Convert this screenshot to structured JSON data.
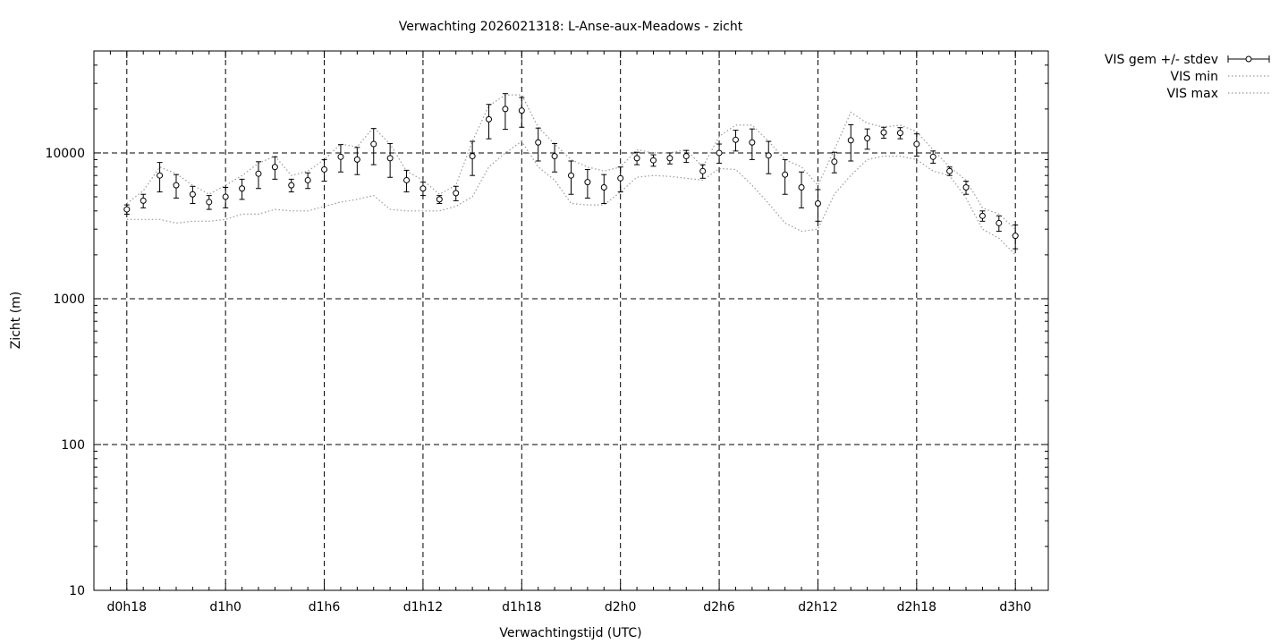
{
  "chart_data": {
    "type": "line",
    "title": "Verwachting 2026021318: L-Anse-aux-Meadows - zicht",
    "xlabel": "Verwachtingstijd (UTC)",
    "ylabel": "Zicht (m)",
    "yscale": "log",
    "ylim": [
      10,
      50000
    ],
    "xlim": [
      -2,
      56
    ],
    "x_unit": "hours since d0h18",
    "grid": true,
    "legend_position": "outside-top-right",
    "xticks": [
      {
        "x": 0,
        "label": "d0h18"
      },
      {
        "x": 6,
        "label": "d1h0"
      },
      {
        "x": 12,
        "label": "d1h6"
      },
      {
        "x": 18,
        "label": "d1h12"
      },
      {
        "x": 24,
        "label": "d1h18"
      },
      {
        "x": 30,
        "label": "d2h0"
      },
      {
        "x": 36,
        "label": "d2h6"
      },
      {
        "x": 42,
        "label": "d2h12"
      },
      {
        "x": 48,
        "label": "d2h18"
      },
      {
        "x": 54,
        "label": "d3h0"
      }
    ],
    "yticks": [
      {
        "y": 10,
        "label": "10"
      },
      {
        "y": 100,
        "label": "100"
      },
      {
        "y": 1000,
        "label": "1000"
      },
      {
        "y": 10000,
        "label": "10000"
      }
    ],
    "x": [
      0,
      1,
      2,
      3,
      4,
      5,
      6,
      7,
      8,
      9,
      10,
      11,
      12,
      13,
      14,
      15,
      16,
      17,
      18,
      19,
      20,
      21,
      22,
      23,
      24,
      25,
      26,
      27,
      28,
      29,
      30,
      31,
      32,
      33,
      34,
      35,
      36,
      37,
      38,
      39,
      40,
      41,
      42,
      43,
      44,
      45,
      46,
      47,
      48,
      49,
      50,
      51,
      52,
      53,
      54
    ],
    "series": [
      {
        "name": "VIS gem +/- stdev",
        "style": "points-errorbars",
        "mean": [
          4100,
          4700,
          7000,
          6000,
          5200,
          4600,
          5000,
          5700,
          7200,
          8000,
          6000,
          6500,
          7700,
          9400,
          9000,
          11500,
          9200,
          6500,
          5700,
          4800,
          5300,
          9500,
          17000,
          20000,
          19500,
          11800,
          9500,
          7000,
          6300,
          5800,
          6700,
          9200,
          8900,
          9200,
          9500,
          7500,
          10000,
          12300,
          11800,
          9600,
          7100,
          5800,
          4500,
          8700,
          12200,
          12600,
          13800,
          13700,
          11500,
          9400,
          7500,
          5800,
          3700,
          3300,
          2700
        ],
        "stdev": [
          300,
          500,
          1600,
          1100,
          700,
          500,
          800,
          900,
          1500,
          1400,
          600,
          800,
          1300,
          2000,
          1900,
          3200,
          2400,
          1100,
          600,
          300,
          600,
          2500,
          4500,
          5500,
          4500,
          3000,
          2100,
          1800,
          1400,
          1300,
          1300,
          900,
          800,
          800,
          900,
          800,
          1500,
          2000,
          2800,
          2400,
          1900,
          1600,
          1100,
          1400,
          3400,
          2000,
          1200,
          1200,
          2000,
          900,
          500,
          600,
          300,
          400,
          500
        ]
      },
      {
        "name": "VIS min",
        "style": "dotted",
        "values": [
          3500,
          3500,
          3500,
          3300,
          3400,
          3400,
          3500,
          3800,
          3800,
          4100,
          4000,
          4000,
          4300,
          4600,
          4800,
          5100,
          4100,
          4000,
          4000,
          4000,
          4300,
          5000,
          8000,
          10000,
          12000,
          8000,
          6500,
          4500,
          4400,
          4400,
          5400,
          6800,
          7000,
          6900,
          6700,
          6500,
          7800,
          7700,
          6000,
          4500,
          3300,
          2900,
          3000,
          5200,
          7000,
          9000,
          9500,
          9500,
          9000,
          7500,
          7000,
          4900,
          3000,
          2600,
          2000
        ]
      },
      {
        "name": "VIS max",
        "style": "dotted",
        "values": [
          4500,
          5500,
          8000,
          7200,
          6000,
          5200,
          6000,
          7000,
          8500,
          9500,
          7000,
          7500,
          9000,
          11500,
          11000,
          15000,
          11500,
          7500,
          6500,
          5200,
          6000,
          12000,
          21000,
          25000,
          25000,
          15000,
          11500,
          9000,
          8000,
          7500,
          8000,
          10500,
          10000,
          10000,
          10500,
          8000,
          13000,
          15500,
          15500,
          12000,
          9000,
          8000,
          6000,
          10500,
          19000,
          16000,
          15000,
          15500,
          14000,
          10500,
          8000,
          6500,
          4200,
          3800,
          3000
        ]
      }
    ]
  }
}
